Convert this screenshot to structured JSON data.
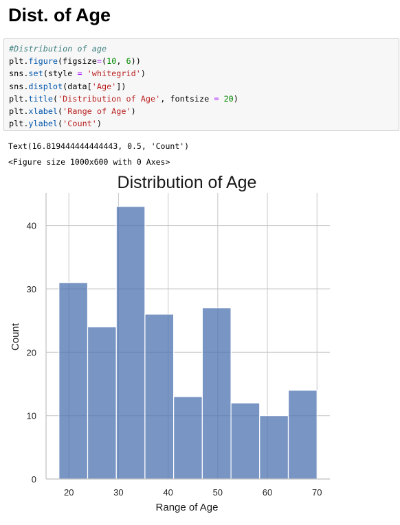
{
  "heading": "Dist. of Age",
  "code_lines": [
    [
      {
        "t": "#Distribution of age",
        "c": "comment"
      }
    ],
    [
      {
        "t": "plt",
        "c": "name"
      },
      {
        "t": ".",
        "c": "name"
      },
      {
        "t": "figure",
        "c": "attr"
      },
      {
        "t": "(figsize",
        "c": "name"
      },
      {
        "t": "=",
        "c": "op"
      },
      {
        "t": "(",
        "c": "name"
      },
      {
        "t": "10",
        "c": "num"
      },
      {
        "t": ", ",
        "c": "name"
      },
      {
        "t": "6",
        "c": "num"
      },
      {
        "t": "))",
        "c": "name"
      }
    ],
    [
      {
        "t": "sns",
        "c": "name"
      },
      {
        "t": ".",
        "c": "name"
      },
      {
        "t": "set",
        "c": "attr"
      },
      {
        "t": "(style ",
        "c": "name"
      },
      {
        "t": "=",
        "c": "op"
      },
      {
        "t": " ",
        "c": "name"
      },
      {
        "t": "'whitegrid'",
        "c": "str"
      },
      {
        "t": ")",
        "c": "name"
      }
    ],
    [
      {
        "t": "sns",
        "c": "name"
      },
      {
        "t": ".",
        "c": "name"
      },
      {
        "t": "displot",
        "c": "attr"
      },
      {
        "t": "(data[",
        "c": "name"
      },
      {
        "t": "'Age'",
        "c": "str"
      },
      {
        "t": "])",
        "c": "name"
      }
    ],
    [
      {
        "t": "plt",
        "c": "name"
      },
      {
        "t": ".",
        "c": "name"
      },
      {
        "t": "title",
        "c": "attr"
      },
      {
        "t": "(",
        "c": "name"
      },
      {
        "t": "'Distribution of Age'",
        "c": "str"
      },
      {
        "t": ", fontsize ",
        "c": "name"
      },
      {
        "t": "=",
        "c": "op"
      },
      {
        "t": " ",
        "c": "name"
      },
      {
        "t": "20",
        "c": "num"
      },
      {
        "t": ")",
        "c": "name"
      }
    ],
    [
      {
        "t": "plt",
        "c": "name"
      },
      {
        "t": ".",
        "c": "name"
      },
      {
        "t": "xlabel",
        "c": "attr"
      },
      {
        "t": "(",
        "c": "name"
      },
      {
        "t": "'Range of Age'",
        "c": "str"
      },
      {
        "t": ")",
        "c": "name"
      }
    ],
    [
      {
        "t": "plt",
        "c": "name"
      },
      {
        "t": ".",
        "c": "name"
      },
      {
        "t": "ylabel",
        "c": "attr"
      },
      {
        "t": "(",
        "c": "name"
      },
      {
        "t": "'Count'",
        "c": "str"
      },
      {
        "t": ")",
        "c": "name"
      }
    ]
  ],
  "outputs": {
    "line1": "Text(16.819444444444443, 0.5, 'Count')",
    "line2": "<Figure size 1000x600 with 0 Axes>"
  },
  "chart_data": {
    "type": "bar",
    "title": "Distribution of Age",
    "xlabel": "Range of Age",
    "ylabel": "Count",
    "bins": [
      {
        "x0": 18,
        "x1": 23.78,
        "count": 31
      },
      {
        "x0": 23.78,
        "x1": 29.56,
        "count": 24
      },
      {
        "x0": 29.56,
        "x1": 35.33,
        "count": 43
      },
      {
        "x0": 35.33,
        "x1": 41.11,
        "count": 26
      },
      {
        "x0": 41.11,
        "x1": 46.89,
        "count": 13
      },
      {
        "x0": 46.89,
        "x1": 52.67,
        "count": 27
      },
      {
        "x0": 52.67,
        "x1": 58.44,
        "count": 12
      },
      {
        "x0": 58.44,
        "x1": 64.22,
        "count": 10
      },
      {
        "x0": 64.22,
        "x1": 70,
        "count": 14
      }
    ],
    "xticks": [
      20,
      30,
      40,
      50,
      60,
      70
    ],
    "yticks": [
      0,
      10,
      20,
      30,
      40
    ],
    "xlim": [
      15.4,
      72.6
    ],
    "ylim": [
      0,
      45.15
    ],
    "bar_color": "#4c72b0",
    "grid": true,
    "style": "whitegrid"
  }
}
